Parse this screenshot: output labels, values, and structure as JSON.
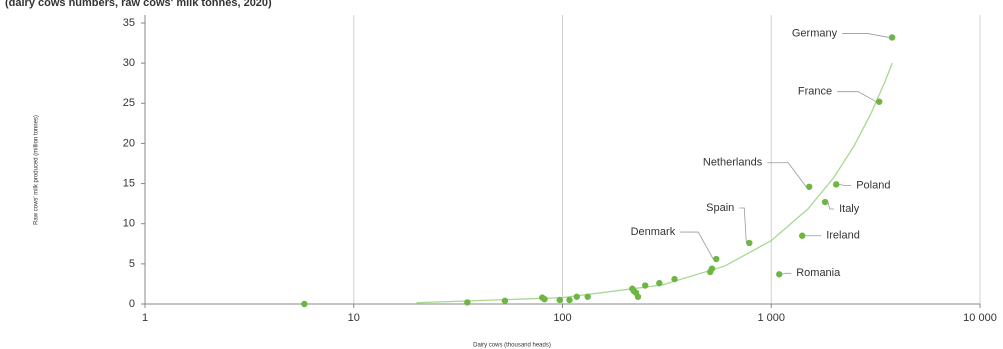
{
  "chart_data": {
    "type": "scatter",
    "subtitle": "(dairy cows numbers, raw cows' milk tonnes, 2020)",
    "x_label": "Dairy cows (thousand heads)",
    "y_label": "Raw cows' milk produced (million tonnes)",
    "x_log": true,
    "grid": "x",
    "color": "#6cb644",
    "xlim": [
      1,
      10000
    ],
    "ylim": [
      0,
      35
    ],
    "xticks": [
      1,
      10,
      100,
      {
        "value": 1000,
        "label": "1 000"
      },
      {
        "value": 10000,
        "label": "10 000"
      }
    ],
    "yticks": [
      0,
      5,
      10,
      15,
      20,
      25,
      30,
      35
    ],
    "x": [
      5.8,
      35,
      53,
      80,
      82,
      97,
      108,
      117,
      132,
      216,
      220,
      225,
      230,
      249,
      291,
      344,
      510,
      520,
      545,
      785,
      1092,
      1407,
      1520,
      1811,
      2047,
      3289,
      3793
    ],
    "y": [
      0,
      0.2,
      0.4,
      0.8,
      0.6,
      0.5,
      0.5,
      0.9,
      0.9,
      1.9,
      1.6,
      1.4,
      0.9,
      2.3,
      2.6,
      3.1,
      4.0,
      4.4,
      5.6,
      7.6,
      3.7,
      8.5,
      14.6,
      12.7,
      14.9,
      25.2,
      33.2
    ],
    "annotations": [
      {
        "text": "Germany",
        "index": 26
      },
      {
        "text": "France",
        "index": 25
      },
      {
        "text": "Netherlands",
        "index": 22
      },
      {
        "text": "Spain",
        "index": 19
      },
      {
        "text": "Denmark",
        "index": 18
      },
      {
        "text": "Poland",
        "index": 24
      },
      {
        "text": "Italy",
        "index": 23
      },
      {
        "text": "Ireland",
        "index": 21
      },
      {
        "text": "Romania",
        "index": 20
      }
    ],
    "trend": {
      "color": "#a8d890",
      "x": [
        20,
        100,
        300,
        600,
        1000,
        1500,
        2000,
        2500,
        3000,
        3500,
        3800
      ],
      "y": [
        0.16,
        0.79,
        2.37,
        4.74,
        7.9,
        11.85,
        15.8,
        19.75,
        23.7,
        27.65,
        30.02
      ]
    }
  }
}
